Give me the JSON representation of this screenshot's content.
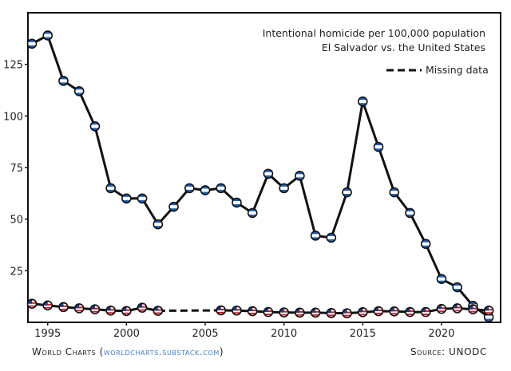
{
  "footer": {
    "brand": "World Charts",
    "open_paren": " (",
    "link": "worldcharts.substack.com",
    "close_paren": ")",
    "source": "Source: UNODC"
  },
  "colors": {
    "line": "#111111",
    "el_salvador_blue": "#1f5fb3",
    "us_red": "#c8202e",
    "us_blue": "#213b7a",
    "axis": "#111111"
  },
  "chart_data": {
    "type": "line",
    "title": "Intentional homicide per 100,000 population",
    "subtitle": "El Salvador vs. the United States",
    "xlabel": "",
    "ylabel": "",
    "xlim": [
      1994,
      2023.5
    ],
    "ylim": [
      0,
      150
    ],
    "x_ticks": [
      1995,
      2000,
      2005,
      2010,
      2015,
      2020
    ],
    "y_ticks": [
      25,
      50,
      75,
      100,
      125
    ],
    "grid": false,
    "legend": {
      "position": "top-right",
      "entries": [
        {
          "label": "Missing data",
          "style": "dashed"
        }
      ]
    },
    "series": [
      {
        "flag": "el-salvador",
        "x": [
          1994,
          1995,
          1996,
          1997,
          1998,
          1999,
          2000,
          2001,
          2002,
          2003,
          2004,
          2005,
          2006,
          2007,
          2008,
          2009,
          2010,
          2011,
          2012,
          2013,
          2014,
          2015,
          2016,
          2017,
          2018,
          2019,
          2020,
          2021,
          2022,
          2023
        ],
        "values": [
          135,
          139,
          117,
          112,
          95,
          65,
          60,
          60,
          47.5,
          56,
          65,
          64,
          65,
          58,
          53,
          72,
          65,
          71,
          42,
          41,
          63,
          107,
          85,
          63,
          53,
          38,
          21,
          17,
          8,
          2.5
        ]
      },
      {
        "flag": "united-states",
        "x": [
          1994,
          1995,
          1996,
          1997,
          1998,
          1999,
          2000,
          2001,
          2002,
          2006,
          2007,
          2008,
          2009,
          2010,
          2011,
          2012,
          2013,
          2014,
          2015,
          2016,
          2017,
          2018,
          2019,
          2020,
          2021,
          2022,
          2023
        ],
        "values": [
          9.0,
          8.2,
          7.4,
          6.8,
          6.3,
          5.7,
          5.5,
          7.1,
          5.6,
          5.8,
          5.7,
          5.4,
          5.0,
          4.8,
          4.7,
          4.7,
          4.5,
          4.4,
          4.9,
          5.4,
          5.3,
          5.0,
          5.0,
          6.5,
          6.8,
          6.3,
          5.7
        ],
        "missing_range": [
          2002,
          2006
        ]
      }
    ]
  }
}
